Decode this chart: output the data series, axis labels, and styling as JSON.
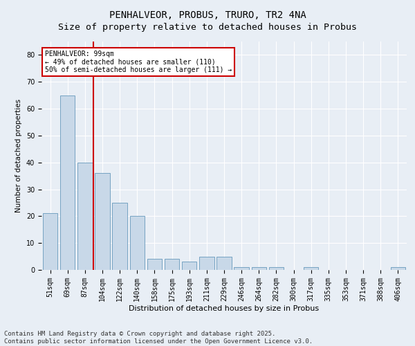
{
  "title": "PENHALVEOR, PROBUS, TRURO, TR2 4NA",
  "subtitle": "Size of property relative to detached houses in Probus",
  "xlabel": "Distribution of detached houses by size in Probus",
  "ylabel": "Number of detached properties",
  "categories": [
    "51sqm",
    "69sqm",
    "87sqm",
    "104sqm",
    "122sqm",
    "140sqm",
    "158sqm",
    "175sqm",
    "193sqm",
    "211sqm",
    "229sqm",
    "246sqm",
    "264sqm",
    "282sqm",
    "300sqm",
    "317sqm",
    "335sqm",
    "353sqm",
    "371sqm",
    "388sqm",
    "406sqm"
  ],
  "values": [
    21,
    65,
    40,
    36,
    25,
    20,
    4,
    4,
    3,
    5,
    5,
    1,
    1,
    1,
    0,
    1,
    0,
    0,
    0,
    0,
    1
  ],
  "bar_color": "#c8d8e8",
  "bar_edge_color": "#6699bb",
  "red_line_x": 2.5,
  "annotation_text": "PENHALVEOR: 99sqm\n← 49% of detached houses are smaller (110)\n50% of semi-detached houses are larger (111) →",
  "annotation_box_color": "#ffffff",
  "annotation_box_edge": "#cc0000",
  "ylim": [
    0,
    85
  ],
  "yticks": [
    0,
    10,
    20,
    30,
    40,
    50,
    60,
    70,
    80
  ],
  "footer": "Contains HM Land Registry data © Crown copyright and database right 2025.\nContains public sector information licensed under the Open Government Licence v3.0.",
  "background_color": "#e8eef5",
  "plot_background": "#e8eef5",
  "grid_color": "#ffffff",
  "title_fontsize": 10,
  "subtitle_fontsize": 9.5,
  "tick_fontsize": 7,
  "footer_fontsize": 6.5,
  "xlabel_fontsize": 8,
  "ylabel_fontsize": 7.5
}
